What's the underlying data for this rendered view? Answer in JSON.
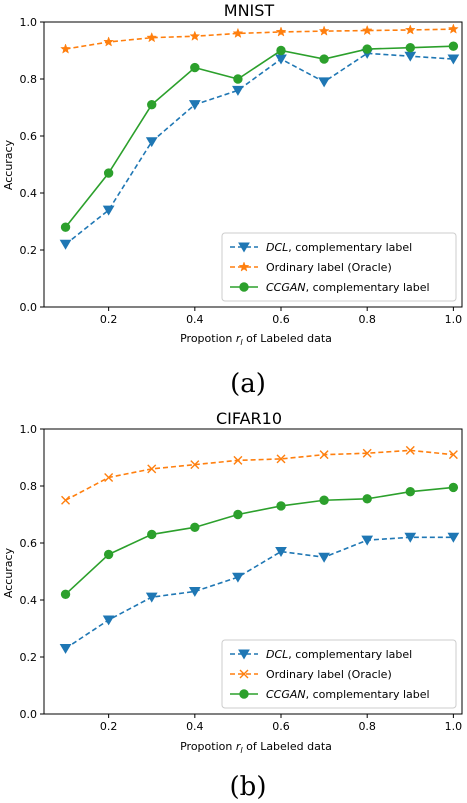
{
  "captions": [
    "(a)",
    "(b)"
  ],
  "chart_data": [
    {
      "type": "line",
      "title": "MNIST",
      "xlabel": "Propotion r_l of Labeled data",
      "ylabel": "Accuracy",
      "x": [
        0.1,
        0.2,
        0.3,
        0.4,
        0.5,
        0.6,
        0.7,
        0.8,
        0.9,
        1.0
      ],
      "xlim": [
        0.05,
        1.02
      ],
      "ylim": [
        0.0,
        1.0
      ],
      "xticks": [
        "0.2",
        "0.4",
        "0.6",
        "0.8",
        "1.0"
      ],
      "yticks": [
        "0.0",
        "0.2",
        "0.4",
        "0.6",
        "0.8",
        "1.0"
      ],
      "legend_position": "lower-right",
      "series": [
        {
          "name": "DCL, complementary label",
          "name_italic": "DCL",
          "name_rest": ", complementary label",
          "color": "#1f77b4",
          "marker": "triangle-down",
          "linestyle": "dashed",
          "values": [
            0.22,
            0.34,
            0.58,
            0.71,
            0.76,
            0.87,
            0.79,
            0.89,
            0.88,
            0.87
          ]
        },
        {
          "name": "Ordinary label (Oracle)",
          "name_italic": "",
          "name_rest": "Ordinary label (Oracle)",
          "color": "#ff7f0e",
          "marker": "star",
          "linestyle": "dashed",
          "values": [
            0.905,
            0.93,
            0.945,
            0.95,
            0.96,
            0.965,
            0.968,
            0.97,
            0.972,
            0.975
          ]
        },
        {
          "name": "CCGAN, complementary label",
          "name_italic": "CCGAN",
          "name_rest": ", complementary label",
          "color": "#2ca02c",
          "marker": "circle",
          "linestyle": "solid",
          "values": [
            0.28,
            0.47,
            0.71,
            0.84,
            0.8,
            0.9,
            0.87,
            0.905,
            0.91,
            0.915
          ]
        }
      ]
    },
    {
      "type": "line",
      "title": "CIFAR10",
      "xlabel": "Propotion r_l of Labeled data",
      "ylabel": "Accuracy",
      "x": [
        0.1,
        0.2,
        0.3,
        0.4,
        0.5,
        0.6,
        0.7,
        0.8,
        0.9,
        1.0
      ],
      "xlim": [
        0.05,
        1.02
      ],
      "ylim": [
        0.0,
        1.0
      ],
      "xticks": [
        "0.2",
        "0.4",
        "0.6",
        "0.8",
        "1.0"
      ],
      "yticks": [
        "0.0",
        "0.2",
        "0.4",
        "0.6",
        "0.8",
        "1.0"
      ],
      "legend_position": "lower-right",
      "series": [
        {
          "name": "DCL, complementary label",
          "name_italic": "DCL",
          "name_rest": ", complementary label",
          "color": "#1f77b4",
          "marker": "triangle-down",
          "linestyle": "dashed",
          "values": [
            0.23,
            0.33,
            0.41,
            0.43,
            0.48,
            0.57,
            0.55,
            0.61,
            0.62,
            0.62
          ]
        },
        {
          "name": "Ordinary label (Oracle)",
          "name_italic": "",
          "name_rest": "Ordinary label (Oracle)",
          "color": "#ff7f0e",
          "marker": "x",
          "linestyle": "dashed",
          "values": [
            0.75,
            0.83,
            0.86,
            0.875,
            0.89,
            0.895,
            0.91,
            0.915,
            0.925,
            0.91
          ]
        },
        {
          "name": "CCGAN, complementary label",
          "name_italic": "CCGAN",
          "name_rest": ", complementary label",
          "color": "#2ca02c",
          "marker": "circle",
          "linestyle": "solid",
          "values": [
            0.42,
            0.56,
            0.63,
            0.655,
            0.7,
            0.73,
            0.75,
            0.755,
            0.78,
            0.795
          ]
        }
      ]
    }
  ]
}
